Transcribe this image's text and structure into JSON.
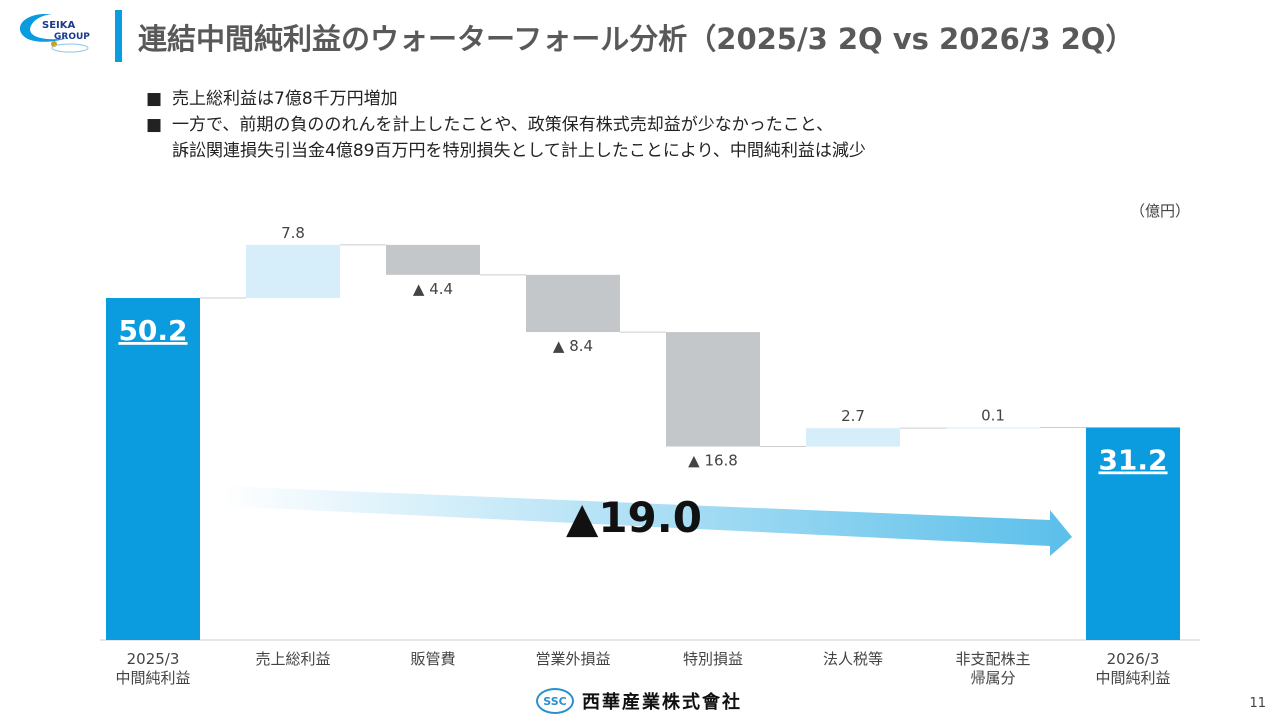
{
  "header": {
    "logo_text": [
      "SEIKA",
      "GROUP"
    ],
    "title": "連結中間純利益のウォーターフォール分析（2025/3 2Q vs 2026/3 2Q）"
  },
  "bullets": [
    "売上総利益は7億8千万円増加",
    "一方で、前期の負ののれんを計上したことや、政策保有株式売却益が少なかったこと、",
    "訴訟関連損失引当金4億89百万円を特別損失として計上したことにより、中間純利益は減少"
  ],
  "bullet_marker": "■",
  "unit": "（億円）",
  "footer": {
    "logo": "SSC",
    "company": "西華産業株式會社",
    "page": "11"
  },
  "colors": {
    "total": "#0b9ce0",
    "increase": "#d6eef9",
    "decrease": "#c4c7c9",
    "arrow": "#5bbfea"
  },
  "chart_data": {
    "type": "waterfall",
    "categories": [
      [
        "2025/3",
        "中間純利益"
      ],
      [
        "売上総利益"
      ],
      [
        "販管費"
      ],
      [
        "営業外損益"
      ],
      [
        "特別損益"
      ],
      [
        "法人税等"
      ],
      [
        "非支配株主",
        "帰属分"
      ],
      [
        "2026/3",
        "中間純利益"
      ]
    ],
    "kinds": [
      "total",
      "up",
      "down",
      "down",
      "down",
      "up",
      "up",
      "total"
    ],
    "values": [
      50.2,
      7.8,
      -4.4,
      -8.4,
      -16.8,
      2.7,
      0.1,
      31.2
    ],
    "labels": [
      "50.2",
      "7.8",
      "▲ 4.4",
      "▲ 8.4",
      "▲ 16.8",
      "2.7",
      "0.1",
      "31.2"
    ],
    "change_label": "▲19.0",
    "ylim": [
      0,
      60
    ]
  }
}
